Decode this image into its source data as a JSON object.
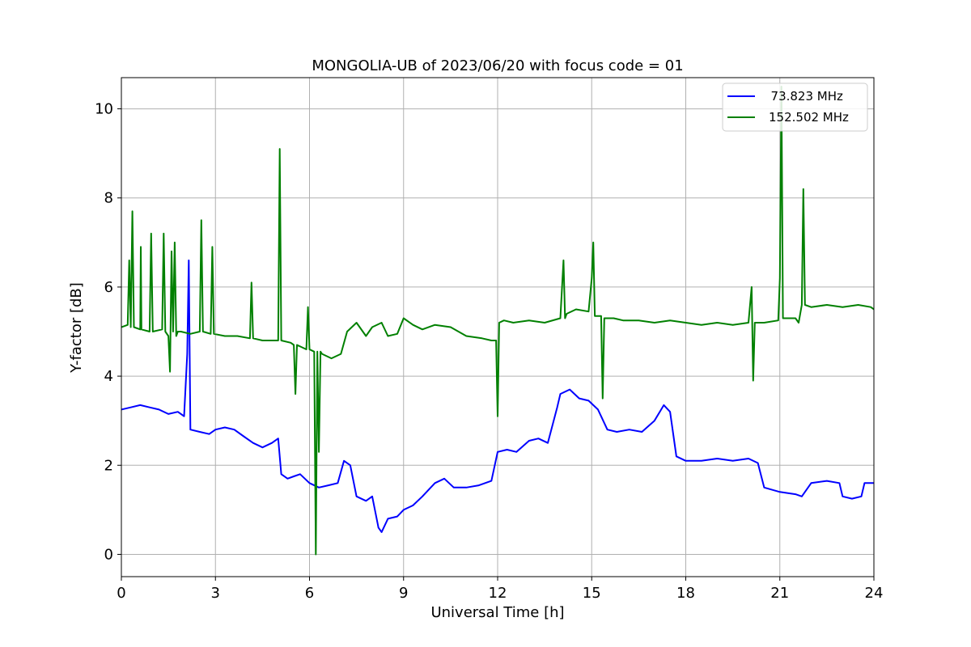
{
  "chart_data": {
    "type": "line",
    "title": "MONGOLIA-UB of 2023/06/20 with focus code = 01",
    "xlabel": "Universal Time [h]",
    "ylabel": "Y-factor [dB]",
    "xlim": [
      0,
      24
    ],
    "ylim": [
      -0.5,
      10.7
    ],
    "xticks": [
      0,
      3,
      6,
      9,
      12,
      15,
      18,
      21,
      24
    ],
    "yticks": [
      0,
      2,
      4,
      6,
      8,
      10
    ],
    "grid": true,
    "legend_position": "top-right",
    "series": [
      {
        "name": "  73.823 MHz",
        "color": "#0000ff",
        "x": [
          0,
          0.3,
          0.6,
          0.9,
          1.2,
          1.5,
          1.8,
          2.0,
          2.1,
          2.15,
          2.2,
          2.5,
          2.8,
          3.0,
          3.3,
          3.6,
          3.9,
          4.2,
          4.5,
          4.8,
          5.0,
          5.1,
          5.3,
          5.5,
          5.7,
          6.0,
          6.3,
          6.6,
          6.9,
          7.1,
          7.3,
          7.5,
          7.8,
          8.0,
          8.2,
          8.3,
          8.5,
          8.8,
          9.0,
          9.3,
          9.6,
          10.0,
          10.3,
          10.6,
          11.0,
          11.4,
          11.8,
          12.0,
          12.3,
          12.6,
          13.0,
          13.3,
          13.6,
          13.9,
          14.0,
          14.3,
          14.6,
          14.9,
          15.2,
          15.5,
          15.8,
          16.2,
          16.6,
          17.0,
          17.3,
          17.5,
          17.7,
          18.0,
          18.5,
          19.0,
          19.5,
          20.0,
          20.3,
          20.5,
          21.0,
          21.5,
          21.7,
          22.0,
          22.5,
          22.9,
          23.0,
          23.3,
          23.6,
          23.7,
          24.0
        ],
        "values": [
          3.25,
          3.3,
          3.35,
          3.3,
          3.25,
          3.15,
          3.2,
          3.1,
          4.5,
          6.6,
          2.8,
          2.75,
          2.7,
          2.8,
          2.85,
          2.8,
          2.65,
          2.5,
          2.4,
          2.5,
          2.6,
          1.8,
          1.7,
          1.75,
          1.8,
          1.6,
          1.5,
          1.55,
          1.6,
          2.1,
          2.0,
          1.3,
          1.2,
          1.3,
          0.6,
          0.5,
          0.8,
          0.85,
          1.0,
          1.1,
          1.3,
          1.6,
          1.7,
          1.5,
          1.5,
          1.55,
          1.65,
          2.3,
          2.35,
          2.3,
          2.55,
          2.6,
          2.5,
          3.3,
          3.6,
          3.7,
          3.5,
          3.45,
          3.25,
          2.8,
          2.75,
          2.8,
          2.75,
          3.0,
          3.35,
          3.2,
          2.2,
          2.1,
          2.1,
          2.15,
          2.1,
          2.15,
          2.05,
          1.5,
          1.4,
          1.35,
          1.3,
          1.6,
          1.65,
          1.6,
          1.3,
          1.25,
          1.3,
          1.6,
          1.6
        ]
      },
      {
        "name": "152.502 MHz",
        "color": "#008000",
        "x": [
          0,
          0.2,
          0.25,
          0.3,
          0.35,
          0.4,
          0.6,
          0.62,
          0.64,
          0.9,
          0.95,
          1.0,
          1.3,
          1.35,
          1.4,
          1.5,
          1.55,
          1.6,
          1.65,
          1.7,
          1.75,
          1.8,
          1.9,
          2.2,
          2.5,
          2.55,
          2.6,
          2.85,
          2.9,
          2.95,
          3.3,
          3.7,
          4.1,
          4.15,
          4.2,
          4.5,
          4.8,
          5.0,
          5.05,
          5.1,
          5.4,
          5.5,
          5.55,
          5.6,
          5.9,
          5.95,
          6.0,
          6.15,
          6.2,
          6.25,
          6.3,
          6.35,
          6.4,
          6.7,
          7.0,
          7.2,
          7.5,
          7.8,
          8.0,
          8.3,
          8.5,
          8.8,
          9.0,
          9.3,
          9.6,
          10.0,
          10.5,
          11.0,
          11.5,
          11.8,
          11.95,
          12.0,
          12.05,
          12.2,
          12.5,
          13.0,
          13.5,
          14.0,
          14.1,
          14.15,
          14.2,
          14.5,
          14.9,
          15.0,
          15.05,
          15.1,
          15.3,
          15.35,
          15.4,
          15.7,
          16.0,
          16.5,
          17.0,
          17.5,
          18.0,
          18.5,
          19.0,
          19.5,
          20.0,
          20.1,
          20.15,
          20.2,
          20.5,
          20.95,
          21.0,
          21.05,
          21.1,
          21.5,
          21.6,
          21.7,
          21.75,
          21.8,
          22.0,
          22.5,
          23.0,
          23.5,
          23.9,
          24.0
        ],
        "values": [
          5.1,
          5.15,
          6.6,
          5.1,
          7.7,
          5.1,
          5.05,
          6.9,
          5.05,
          5.0,
          7.2,
          5.0,
          5.05,
          7.2,
          5.0,
          4.9,
          4.1,
          6.8,
          5.0,
          7.0,
          4.9,
          5.0,
          5.0,
          4.95,
          5.0,
          7.5,
          5.0,
          4.95,
          6.9,
          4.95,
          4.9,
          4.9,
          4.85,
          6.1,
          4.85,
          4.8,
          4.8,
          4.8,
          9.1,
          4.8,
          4.75,
          4.7,
          3.6,
          4.7,
          4.6,
          5.55,
          4.6,
          4.55,
          0.0,
          4.55,
          2.3,
          4.55,
          4.5,
          4.4,
          4.5,
          5.0,
          5.2,
          4.9,
          5.1,
          5.2,
          4.9,
          4.95,
          5.3,
          5.15,
          5.05,
          5.15,
          5.1,
          4.9,
          4.85,
          4.8,
          4.8,
          3.1,
          5.2,
          5.25,
          5.2,
          5.25,
          5.2,
          5.3,
          6.6,
          5.3,
          5.4,
          5.5,
          5.45,
          6.2,
          7.0,
          5.35,
          5.35,
          3.5,
          5.3,
          5.3,
          5.25,
          5.25,
          5.2,
          5.25,
          5.2,
          5.15,
          5.2,
          5.15,
          5.2,
          6.0,
          3.9,
          5.2,
          5.2,
          5.25,
          6.2,
          10.5,
          5.3,
          5.3,
          5.2,
          5.6,
          8.2,
          5.6,
          5.55,
          5.6,
          5.55,
          5.6,
          5.55,
          5.5
        ]
      }
    ]
  }
}
